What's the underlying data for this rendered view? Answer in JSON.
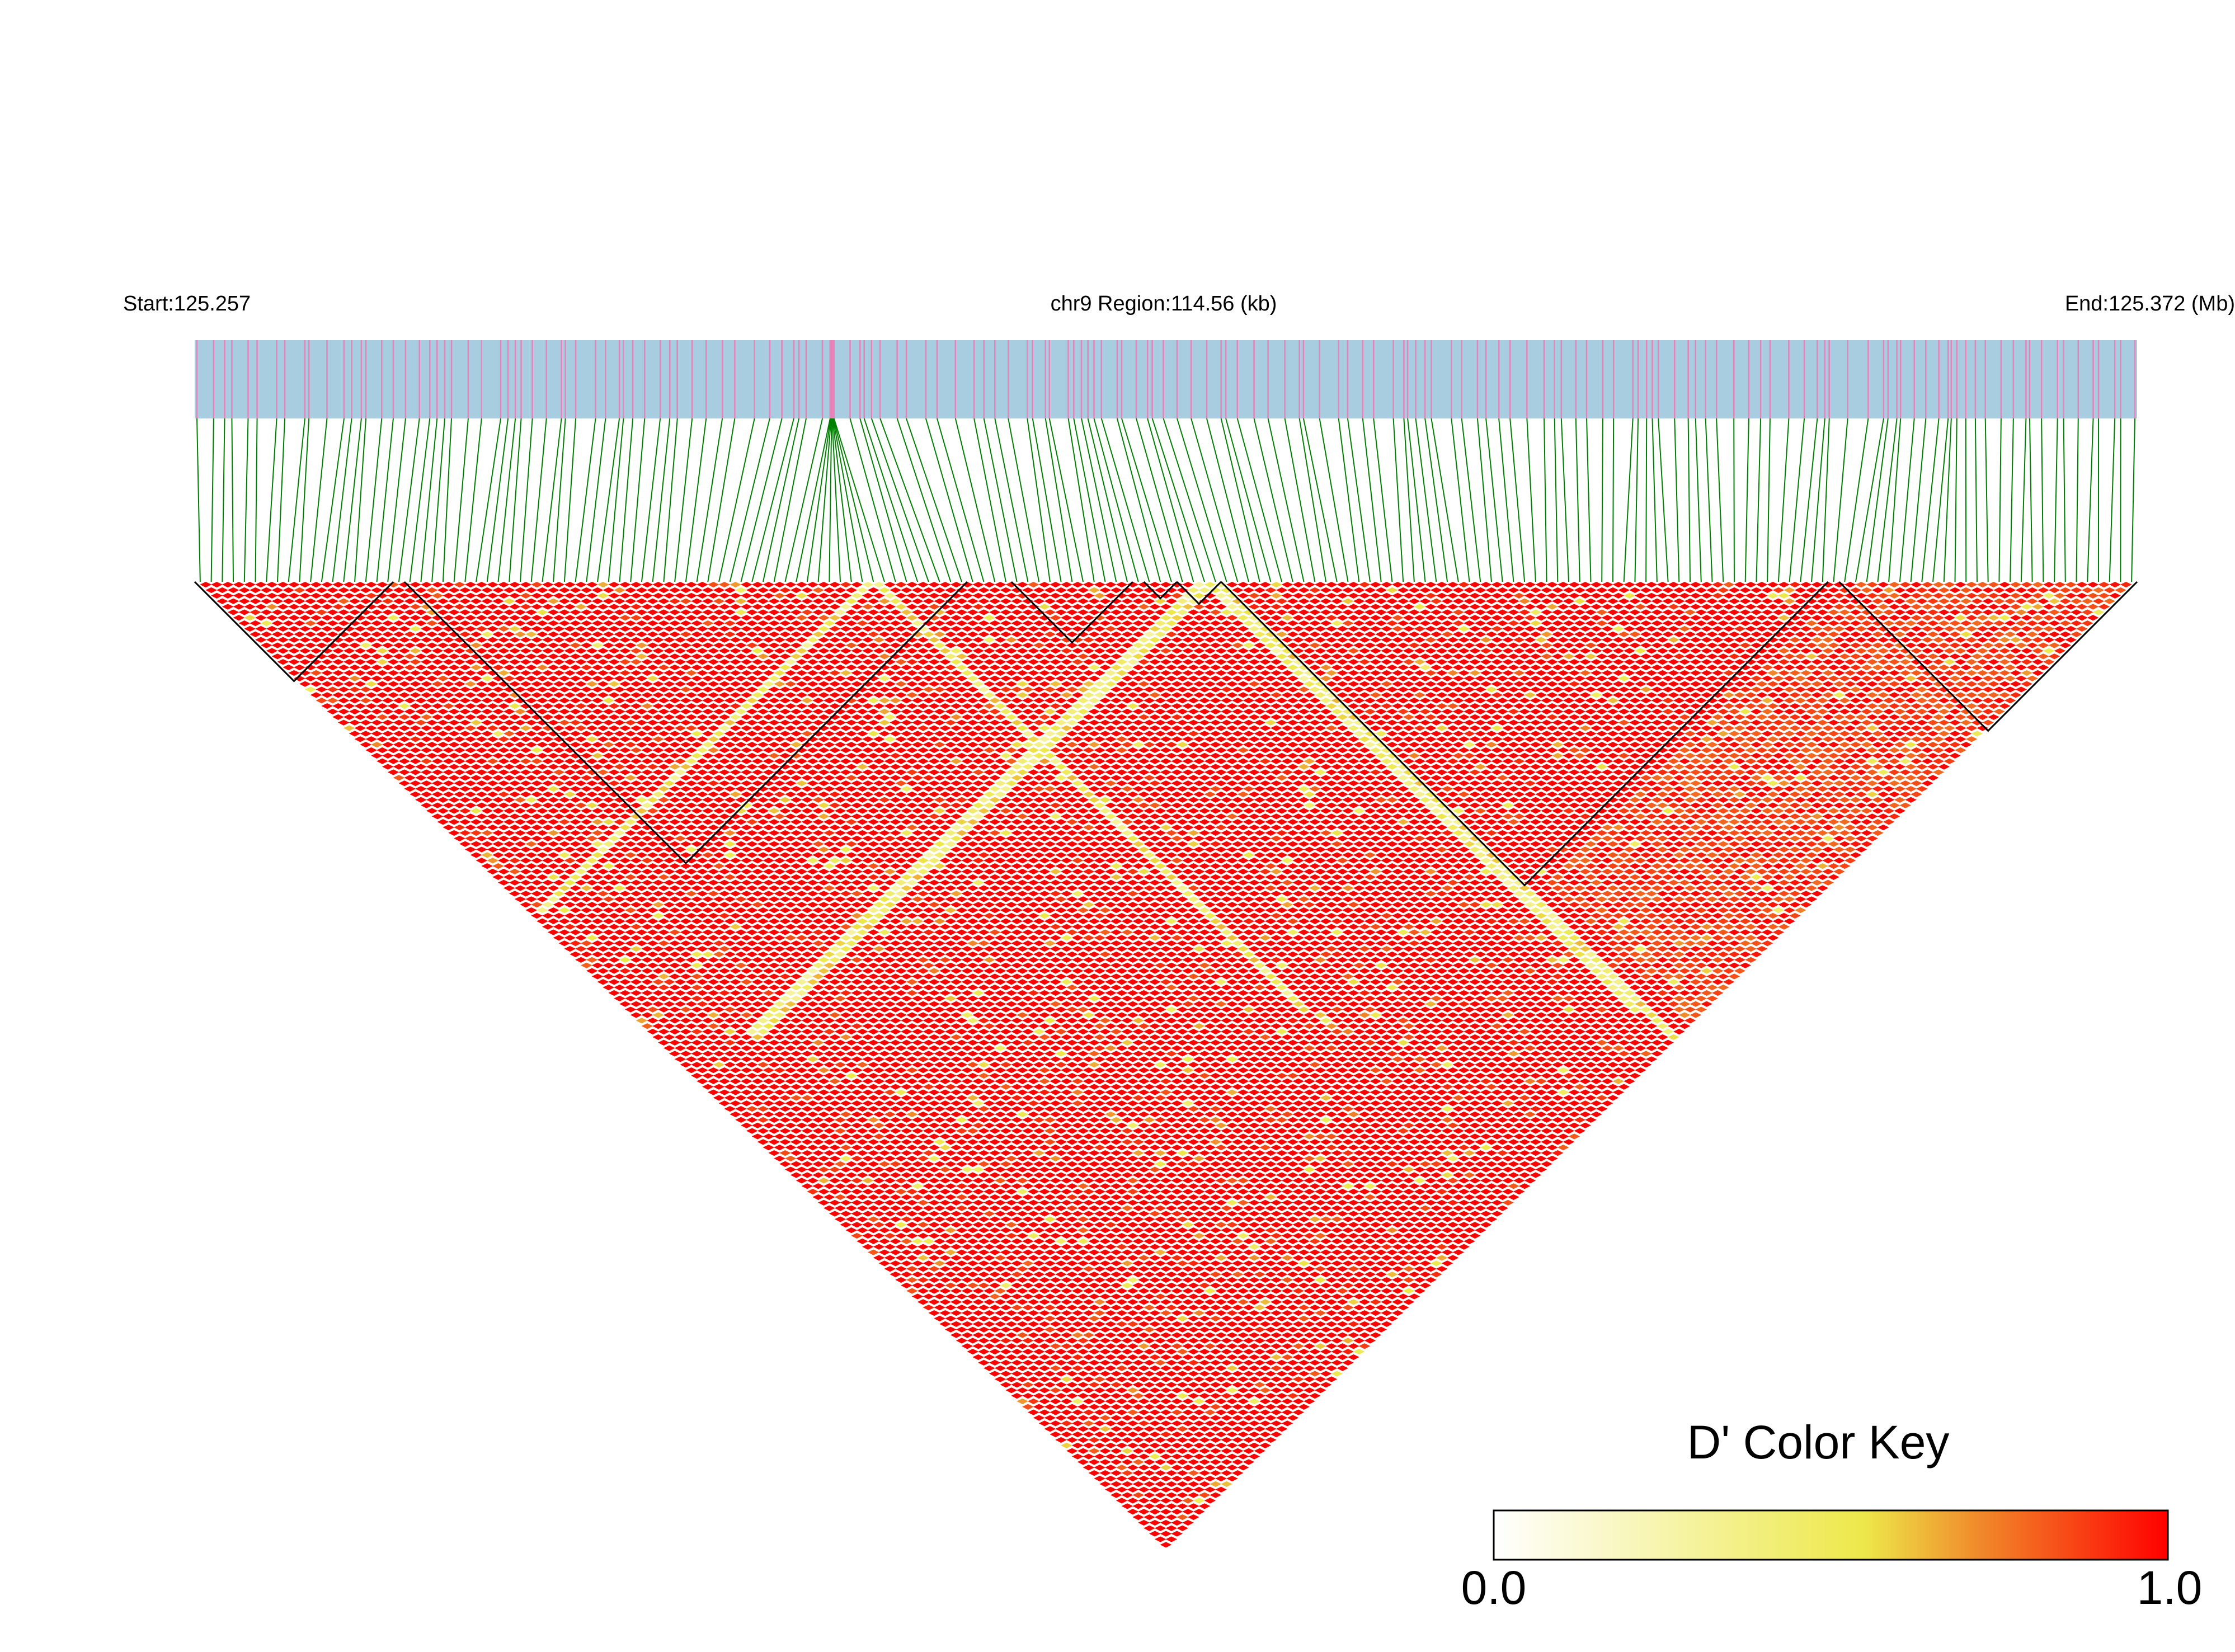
{
  "chart_data": {
    "type": "heatmap",
    "title": "",
    "chromosome": "chr9",
    "start_label": "Start:125.257",
    "region_label": "chr9 Region:114.56 (kb)",
    "end_label": "End:125.372 (Mb)",
    "start_mb": 125.257,
    "end_mb": 125.372,
    "region_kb": 114.56,
    "num_snps": 176,
    "metric": "D'",
    "color_key": {
      "title": "D' Color Key",
      "min_label": "0.0",
      "max_label": "1.0",
      "range": [
        0.0,
        1.0
      ],
      "colors": [
        "#ffffff",
        "#ede84a",
        "#f08a2a",
        "#ff0000"
      ]
    },
    "ld_blocks": [
      {
        "first_snp": 1,
        "last_snp": 18
      },
      {
        "first_snp": 20,
        "last_snp": 70
      },
      {
        "first_snp": 75,
        "last_snp": 85
      },
      {
        "first_snp": 87,
        "last_snp": 89
      },
      {
        "first_snp": 90,
        "last_snp": 93
      },
      {
        "first_snp": 94,
        "last_snp": 148
      },
      {
        "first_snp": 150,
        "last_snp": 176
      }
    ],
    "low_ld_bands": [
      {
        "snp": 62,
        "range": [
          62,
          100
        ],
        "level": 0.3
      },
      {
        "snp": 92,
        "range": [
          70,
          130
        ],
        "level": 0.25
      },
      {
        "snp": 93,
        "range": [
          70,
          140
        ],
        "level": 0.3
      }
    ],
    "gene_track_color": "#a8cce0",
    "snp_tick_color": "#e882b8",
    "connector_color": "#008000"
  }
}
